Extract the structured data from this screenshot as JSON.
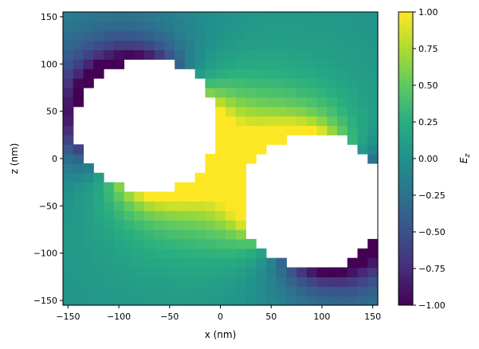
{
  "chart_data": {
    "type": "heatmap",
    "title": "",
    "xlabel": "x (nm)",
    "ylabel": "z (nm)",
    "colorbar_label": "E_z",
    "colormap": "viridis",
    "xlim": [
      -155,
      155
    ],
    "ylim": [
      -155,
      155
    ],
    "clim": [
      -1.0,
      1.0
    ],
    "xticks": [
      -150,
      -100,
      -50,
      0,
      50,
      100,
      150
    ],
    "xtick_labels": [
      "−150",
      "−100",
      "−50",
      "0",
      "50",
      "100",
      "150"
    ],
    "yticks": [
      -150,
      -100,
      -50,
      0,
      50,
      100,
      150
    ],
    "ytick_labels": [
      "−150",
      "−100",
      "−50",
      "0",
      "50",
      "100",
      "150"
    ],
    "cticks": [
      1.0,
      0.75,
      0.5,
      0.25,
      0.0,
      -0.25,
      -0.5,
      -0.75,
      -1.0
    ],
    "ctick_labels": [
      "1.00",
      "0.75",
      "0.50",
      "0.25",
      "0.00",
      "−0.25",
      "−0.50",
      "−0.75",
      "−1.00"
    ],
    "grid": false,
    "field_description": "Dipole-like E_z field around two touching circular particles (masked, no data inside). Particle 1 centered near (-72, 35) nm radius ~70 nm; particle 2 centered near (92, -45) nm radius ~72 nm. Strong positive (yellow) lobes in the gap region and negative (purple) lobes on outer left/right edges.",
    "particles": [
      {
        "cx": -72,
        "cz": 35,
        "r": 70
      },
      {
        "cx": 92,
        "cz": -45,
        "r": 72
      }
    ],
    "grid_cells": {
      "nx": 31,
      "nz": 31,
      "x_start": -155,
      "z_start": -155,
      "step": 10
    }
  }
}
